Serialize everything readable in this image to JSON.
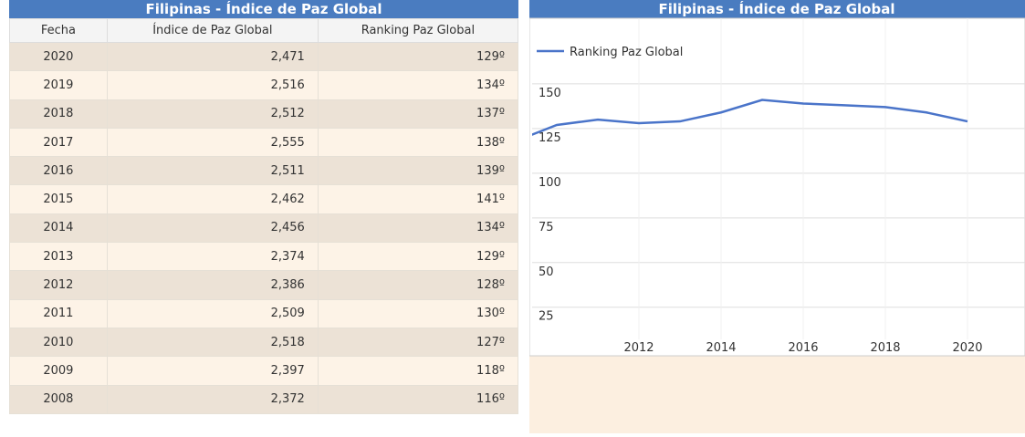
{
  "table": {
    "title": "Filipinas - Índice de Paz Global",
    "columns": [
      "Fecha",
      "Índice de Paz Global",
      "Ranking Paz Global"
    ],
    "rows": [
      [
        "2020",
        "2,471",
        "129º"
      ],
      [
        "2019",
        "2,516",
        "134º"
      ],
      [
        "2018",
        "2,512",
        "137º"
      ],
      [
        "2017",
        "2,555",
        "138º"
      ],
      [
        "2016",
        "2,511",
        "139º"
      ],
      [
        "2015",
        "2,462",
        "141º"
      ],
      [
        "2014",
        "2,456",
        "134º"
      ],
      [
        "2013",
        "2,374",
        "129º"
      ],
      [
        "2012",
        "2,386",
        "128º"
      ],
      [
        "2011",
        "2,509",
        "130º"
      ],
      [
        "2010",
        "2,518",
        "127º"
      ],
      [
        "2009",
        "2,397",
        "118º"
      ],
      [
        "2008",
        "2,372",
        "116º"
      ]
    ]
  },
  "chart_data": {
    "type": "line",
    "title": "Filipinas - Índice de Paz Global",
    "x": [
      2008,
      2009,
      2010,
      2011,
      2012,
      2013,
      2014,
      2015,
      2016,
      2017,
      2018,
      2019,
      2020
    ],
    "series": [
      {
        "name": "Ranking Paz Global",
        "color": "#4a74c9",
        "values": [
          116,
          118,
          127,
          130,
          128,
          129,
          134,
          141,
          139,
          138,
          137,
          134,
          129
        ]
      }
    ],
    "xlim": [
      2009.4,
      2021.4
    ],
    "xticks": [
      2012,
      2014,
      2016,
      2018,
      2020
    ],
    "ylim": [
      7,
      152
    ],
    "yticks": [
      25,
      50,
      75,
      100,
      125,
      150
    ],
    "grid": true
  }
}
